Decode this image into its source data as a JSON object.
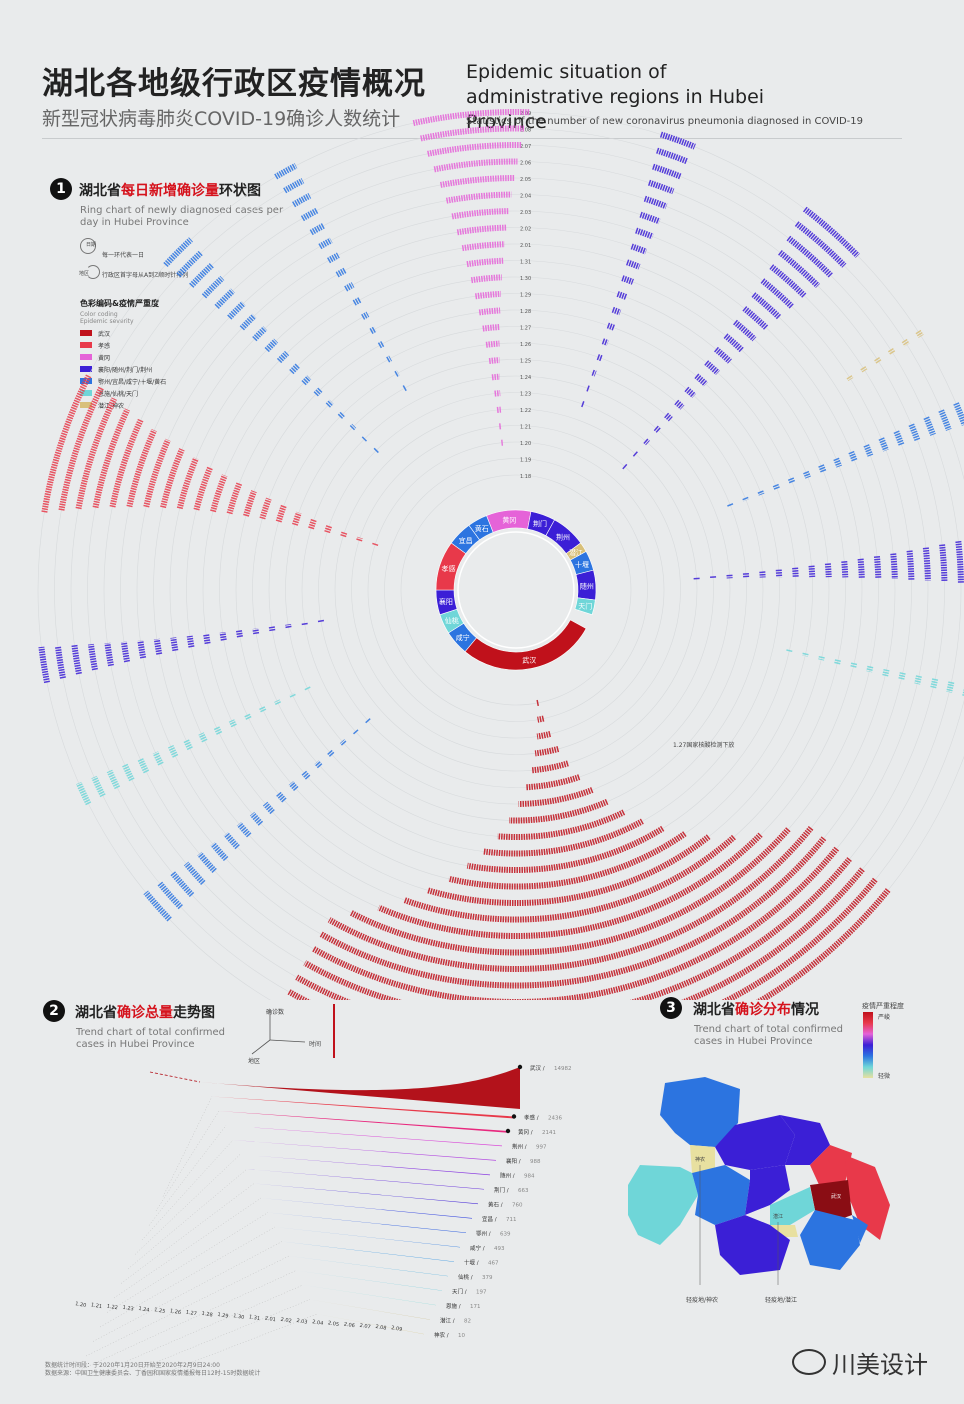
{
  "header": {
    "title_cn": "湖北各地级行政区疫情概况",
    "subtitle_cn": "新型冠状病毒肺炎COVID-19确诊人数统计",
    "title_en": "Epidemic situation of administrative regions in Hubei Province",
    "subtitle_en": "Statistics of the number of new coronavirus pneumonia diagnosed in COVID-19"
  },
  "section1": {
    "num": "1",
    "title_pre": "湖北省",
    "title_hl": "每日新增确诊量",
    "title_post": "环状图",
    "sub_en": "Ring chart of newly diagnosed cases per day in Hubei Province",
    "key_day": "每一环代表一日",
    "key_day_label": "日期",
    "key_order": "行政区首字母从A到Z顺时针排列",
    "key_order_label": "地区",
    "legend_title": "色彩编码&疫情严重度",
    "legend_sub1": "Color coding",
    "legend_sub2": "Epidemic severity",
    "legend": [
      {
        "label": "武汉",
        "color": "#c0111b"
      },
      {
        "label": "孝感",
        "color": "#e8394a"
      },
      {
        "label": "黄冈",
        "color": "#e563d8"
      },
      {
        "label": "襄阳/随州/荆门/荆州",
        "color": "#3b1fd6"
      },
      {
        "label": "鄂州/宜昌/咸宁/十堰/黄石",
        "color": "#2c74e0"
      },
      {
        "label": "恩施/仙桃/天门",
        "color": "#6fd6d8"
      },
      {
        "label": "潜江/神农",
        "color": "#d8c07a"
      }
    ],
    "annotation": "1.27国家核酸检测下放"
  },
  "chart_data": [
    {
      "type": "bar",
      "title": "湖北省每日新增确诊量环状图",
      "ring_labels": [
        "1.18",
        "1.19",
        "1.20",
        "1.21",
        "1.22",
        "1.23",
        "1.24",
        "1.25",
        "1.26",
        "1.27",
        "1.28",
        "1.29",
        "1.30",
        "1.31",
        "2.01",
        "2.02",
        "2.03",
        "2.04",
        "2.05",
        "2.06",
        "2.07",
        "2.08",
        "2.09"
      ],
      "regions": [
        "武汉",
        "孝感",
        "黄冈",
        "襄阳",
        "荆州",
        "随州",
        "荆门",
        "鄂州",
        "宜昌",
        "咸宁",
        "十堰",
        "黄石",
        "恩施",
        "仙桃",
        "天门",
        "潜江",
        "神农"
      ],
      "ring_segments": [
        {
          "label": "武汉",
          "share": 0.28,
          "color": "#c0111b"
        },
        {
          "label": "咸宁",
          "share": 0.05,
          "color": "#2c74e0"
        },
        {
          "label": "仙桃",
          "share": 0.04,
          "color": "#6fd6d8"
        },
        {
          "label": "襄阳",
          "share": 0.05,
          "color": "#3b1fd6"
        },
        {
          "label": "孝感",
          "share": 0.1,
          "color": "#e8394a"
        },
        {
          "label": "宜昌",
          "share": 0.05,
          "color": "#2c74e0"
        },
        {
          "label": "黄石",
          "share": 0.04,
          "color": "#2c74e0"
        },
        {
          "label": "黄冈",
          "share": 0.09,
          "color": "#e563d8"
        },
        {
          "label": "荆门",
          "share": 0.05,
          "color": "#3b1fd6"
        },
        {
          "label": "荆州",
          "share": 0.07,
          "color": "#3b1fd6"
        },
        {
          "label": "潜江",
          "share": 0.02,
          "color": "#d8c07a"
        },
        {
          "label": "十堰",
          "share": 0.04,
          "color": "#2c74e0"
        },
        {
          "label": "随州",
          "share": 0.06,
          "color": "#3b1fd6"
        },
        {
          "label": "天门",
          "share": 0.03,
          "color": "#6fd6d8"
        }
      ]
    },
    {
      "type": "area",
      "title": "湖北省确诊总量走势图",
      "x": [
        "1.20",
        "1.21",
        "1.22",
        "1.23",
        "1.24",
        "1.25",
        "1.26",
        "1.27",
        "1.28",
        "1.29",
        "1.30",
        "1.31",
        "2.01",
        "2.02",
        "2.03",
        "2.04",
        "2.05",
        "2.06",
        "2.07",
        "2.08",
        "2.09"
      ],
      "series": [
        {
          "name": "武汉",
          "value": 14982,
          "color": "#b3121b"
        },
        {
          "name": "孝感",
          "value": 2436,
          "color": "#e8394a"
        },
        {
          "name": "黄冈",
          "value": 2141,
          "color": "#e8287e"
        },
        {
          "name": "荆州",
          "value": 997,
          "color": "#d94bd8"
        },
        {
          "name": "襄阳",
          "value": 988,
          "color": "#b34ae0"
        },
        {
          "name": "随州",
          "value": 984,
          "color": "#8a3ce0"
        },
        {
          "name": "荆门",
          "value": 663,
          "color": "#6a35dc"
        },
        {
          "name": "黄石",
          "value": 760,
          "color": "#4b2fd8"
        },
        {
          "name": "宜昌",
          "value": 711,
          "color": "#3a4be0"
        },
        {
          "name": "鄂州",
          "value": 639,
          "color": "#2f5fe0"
        },
        {
          "name": "咸宁",
          "value": 493,
          "color": "#2f7be0"
        },
        {
          "name": "十堰",
          "value": 467,
          "color": "#2f92e0"
        },
        {
          "name": "仙桃",
          "value": 379,
          "color": "#3ea8dc"
        },
        {
          "name": "天门",
          "value": 197,
          "color": "#5cc4d8"
        },
        {
          "name": "恩施",
          "value": 171,
          "color": "#7fd8d6"
        },
        {
          "name": "潜江",
          "value": 82,
          "color": "#cbbd8c"
        },
        {
          "name": "神农",
          "value": 10,
          "color": "#d8c98f"
        }
      ]
    }
  ],
  "section2": {
    "num": "2",
    "title_pre": "湖北省",
    "title_hl": "确诊总量",
    "title_post": "走势图",
    "sub_en": "Trend chart of total confirmed cases in Hubei Province",
    "axis_count": "确诊数",
    "axis_time": "时间",
    "axis_region": "地区"
  },
  "section3": {
    "num": "3",
    "title_pre": "湖北省",
    "title_hl": "确诊分布",
    "title_post": "情况",
    "sub_en": "Trend chart of total confirmed cases in Hubei Province",
    "scale_title": "疫情严重程度",
    "scale_high": "严峻",
    "scale_low": "轻微",
    "label_shennong": "神农",
    "label_qianjiang": "潜江",
    "label_wuhan": "武汉",
    "note1_title": "轻疫地/神农",
    "note2_title": "轻疫地/潜江"
  },
  "footer": {
    "line1": "数据统计时间段：于2020年1月20日开始至2020年2月9日24:00",
    "line2": "数据来源：中国卫生健康委员会、丁香园和国家疫情播报每日12时-15时数据统计",
    "brand": "川美设计"
  }
}
